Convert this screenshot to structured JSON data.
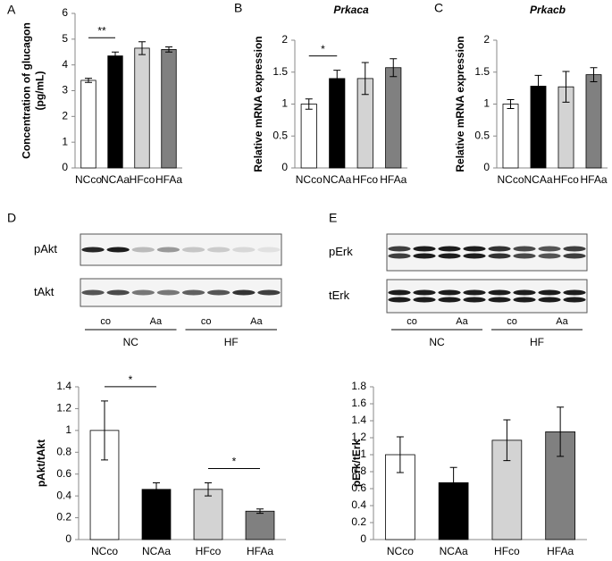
{
  "chart_data": [
    {
      "type": "bar",
      "panel": "A",
      "ylabel": [
        "Concentration of glucagon",
        "(pg/mL)"
      ],
      "categories": [
        "NCco",
        "NCAa",
        "HFco",
        "HFAa"
      ],
      "values": [
        3.4,
        4.35,
        4.65,
        4.6
      ],
      "errors": [
        0.08,
        0.15,
        0.25,
        0.1
      ],
      "colors": [
        "#ffffff",
        "#000000",
        "#d3d3d3",
        "#808080"
      ],
      "ylim": [
        0,
        6
      ],
      "yticks": [
        0,
        1,
        2,
        3,
        4,
        5,
        6
      ],
      "significance": [
        {
          "between": [
            0,
            1
          ],
          "label": "**"
        }
      ]
    },
    {
      "type": "bar",
      "panel": "B",
      "title": "Prkaca",
      "ylabel": [
        "Relative mRNA expression"
      ],
      "categories": [
        "NCco",
        "NCAa",
        "HFco",
        "HFAa"
      ],
      "values": [
        1.0,
        1.4,
        1.4,
        1.57
      ],
      "errors": [
        0.08,
        0.13,
        0.25,
        0.14
      ],
      "colors": [
        "#ffffff",
        "#000000",
        "#d3d3d3",
        "#808080"
      ],
      "ylim": [
        0,
        2
      ],
      "yticks": [
        0,
        0.5,
        1,
        1.5,
        2
      ],
      "significance": [
        {
          "between": [
            0,
            1
          ],
          "label": "*"
        }
      ]
    },
    {
      "type": "bar",
      "panel": "C",
      "title": "Prkacb",
      "ylabel": [
        "Relative mRNA expression"
      ],
      "categories": [
        "NCco",
        "NCAa",
        "HFco",
        "HFAa"
      ],
      "values": [
        1.0,
        1.28,
        1.27,
        1.46
      ],
      "errors": [
        0.07,
        0.17,
        0.24,
        0.11
      ],
      "colors": [
        "#ffffff",
        "#000000",
        "#d3d3d3",
        "#808080"
      ],
      "ylim": [
        0,
        2
      ],
      "yticks": [
        0,
        0.5,
        1,
        1.5,
        2
      ],
      "significance": []
    },
    {
      "type": "bar",
      "ylabel": [
        "pAkt/tAkt"
      ],
      "categories": [
        "NCco",
        "NCAa",
        "HFco",
        "HFAa"
      ],
      "values": [
        1.0,
        0.46,
        0.46,
        0.26
      ],
      "errors": [
        0.27,
        0.06,
        0.06,
        0.02
      ],
      "colors": [
        "#ffffff",
        "#000000",
        "#d3d3d3",
        "#808080"
      ],
      "ylim": [
        0,
        1.4
      ],
      "yticks": [
        0,
        0.2,
        0.4,
        0.6,
        0.8,
        1,
        1.2,
        1.4
      ],
      "significance": [
        {
          "between": [
            0,
            1
          ],
          "label": "*"
        },
        {
          "between": [
            2,
            3
          ],
          "label": "*"
        }
      ]
    },
    {
      "type": "bar",
      "ylabel": [
        "pErk/tErk"
      ],
      "categories": [
        "NCco",
        "NCAa",
        "HFco",
        "HFAa"
      ],
      "values": [
        1.0,
        0.67,
        1.17,
        1.27
      ],
      "errors": [
        0.21,
        0.18,
        0.24,
        0.29
      ],
      "colors": [
        "#ffffff",
        "#000000",
        "#d3d3d3",
        "#808080"
      ],
      "ylim": [
        0,
        1.8
      ],
      "yticks": [
        0,
        0.2,
        0.4,
        0.6,
        0.8,
        1,
        1.2,
        1.4,
        1.6,
        1.8
      ],
      "significance": []
    }
  ],
  "blots": [
    {
      "panel": "D",
      "rows": [
        "pAkt",
        "tAkt"
      ],
      "lanes": [
        "co",
        "Aa",
        "co",
        "Aa"
      ],
      "groups": [
        "NC",
        "HF"
      ]
    },
    {
      "panel": "E",
      "rows": [
        "pErk",
        "tErk"
      ],
      "lanes": [
        "co",
        "Aa",
        "co",
        "Aa"
      ],
      "groups": [
        "NC",
        "HF"
      ]
    }
  ]
}
